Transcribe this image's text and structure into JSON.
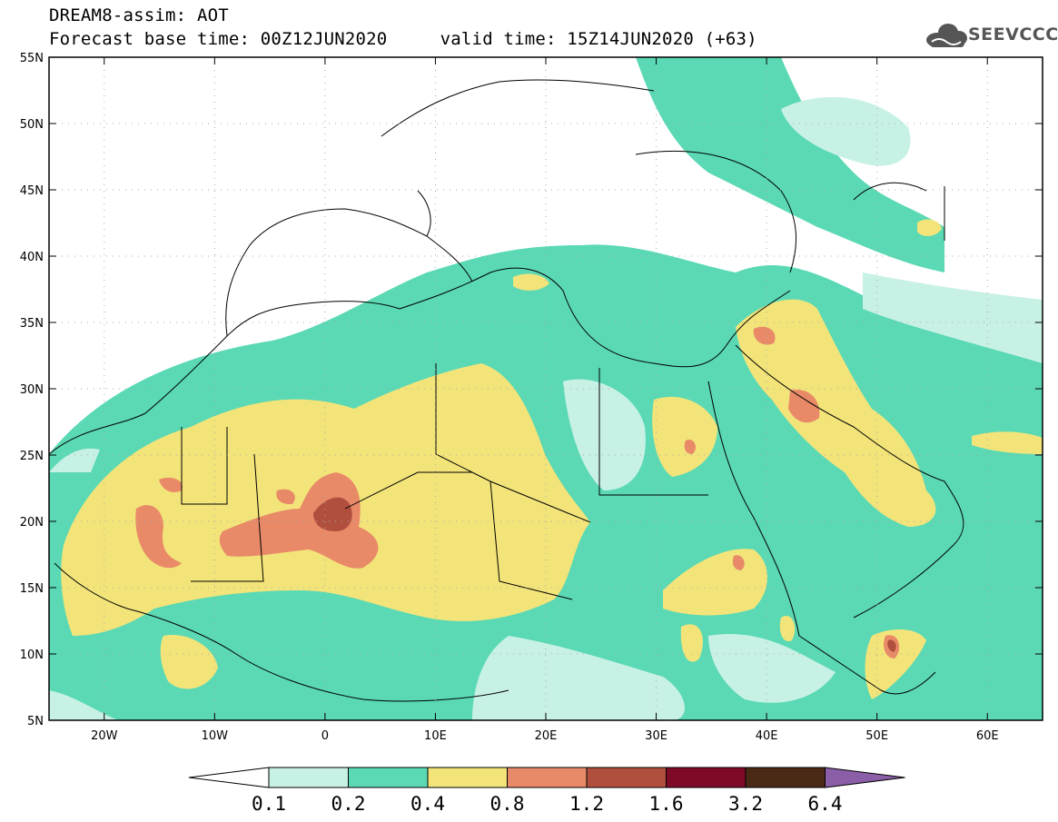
{
  "header": {
    "line1": "DREAM8-assim: AOT",
    "line2": "Forecast base time: 00Z12JUN2020     valid time: 15Z14JUN2020 (+63)",
    "brand": "SEEVCCC"
  },
  "map": {
    "lon_range": [
      -25,
      65
    ],
    "lat_range": [
      5,
      55
    ],
    "x_ticks": [
      "20W",
      "10W",
      "0",
      "10E",
      "20E",
      "30E",
      "40E",
      "50E",
      "60E"
    ],
    "y_ticks": [
      "55N",
      "50N",
      "45N",
      "40N",
      "35N",
      "30N",
      "25N",
      "20N",
      "15N",
      "10N",
      "5N"
    ]
  },
  "colorbar": {
    "levels": [
      "0.1",
      "0.2",
      "0.4",
      "0.8",
      "1.2",
      "1.6",
      "3.2",
      "6.4"
    ],
    "colors": [
      "#ffffff",
      "#c8f1e6",
      "#5ad9b4",
      "#f3e47a",
      "#e88a68",
      "#b04f3e",
      "#7f0a27",
      "#4a2a14",
      "#8a5fa8"
    ]
  }
}
